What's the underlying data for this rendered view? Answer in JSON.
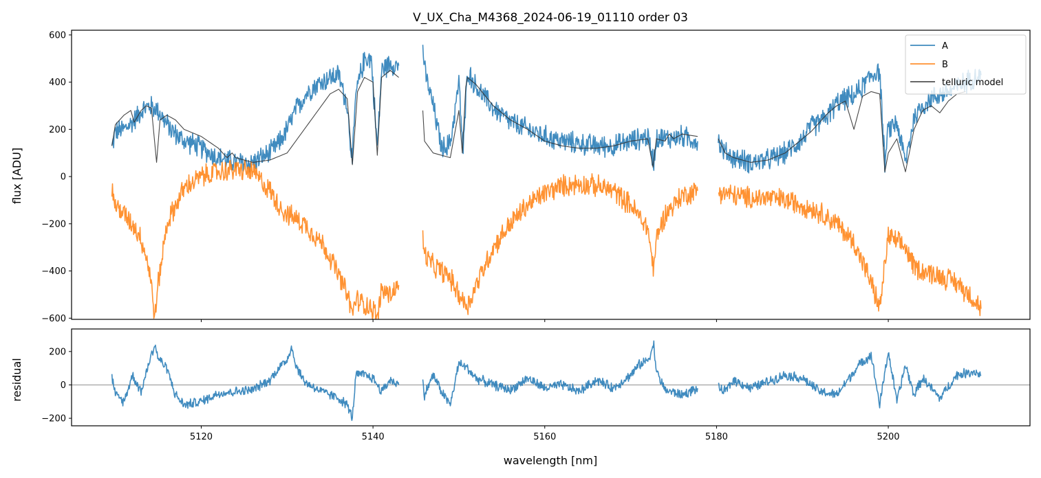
{
  "title": "V_UX_Cha_M4368_2024-06-19_01110  order 03",
  "colors": {
    "A": "#1f77b4",
    "B": "#ff7f0e",
    "model": "#333333",
    "zero_line": "#808080"
  },
  "chart_data": [
    {
      "type": "line",
      "panel": "top",
      "title": "V_UX_Cha_M4368_2024-06-19_01110  order 03",
      "xlabel": "",
      "ylabel": "flux [ADU]",
      "xlim": [
        5104.9,
        5216.5
      ],
      "ylim": [
        -605,
        620
      ],
      "yticks": [
        -600,
        -400,
        -200,
        0,
        200,
        400,
        600
      ],
      "ytick_labels": [
        "−600",
        "−400",
        "−200",
        "0",
        "200",
        "400",
        "600"
      ],
      "xticks": [
        5120,
        5140,
        5160,
        5180,
        5200
      ],
      "legend": {
        "placement": "top-right",
        "entries": [
          "A",
          "B",
          "telluric model"
        ]
      },
      "series": [
        {
          "name": "A",
          "segments": [
            {
              "x": [
                5109.6,
                5110,
                5111,
                5112,
                5113,
                5114,
                5115,
                5116,
                5117,
                5118,
                5119,
                5120,
                5122,
                5124,
                5126,
                5128,
                5129,
                5130,
                5131,
                5132,
                5133,
                5134,
                5135,
                5136,
                5137,
                5137.6,
                5138,
                5139,
                5139.8,
                5140.5,
                5141,
                5142,
                5143
              ],
              "y": [
                120,
                190,
                200,
                230,
                280,
                300,
                280,
                220,
                180,
                150,
                140,
                120,
                80,
                60,
                60,
                100,
                140,
                200,
                280,
                340,
                380,
                400,
                420,
                430,
                300,
                60,
                350,
                500,
                500,
                120,
                450,
                480,
                470
              ]
            },
            {
              "x": [
                5145.8,
                5146,
                5147,
                5148,
                5149,
                5150,
                5150.5,
                5151,
                5152,
                5154,
                5156,
                5158,
                5160,
                5162,
                5164,
                5166,
                5168,
                5170,
                5172,
                5172.7,
                5173,
                5174,
                5176,
                5177.8
              ],
              "y": [
                560,
                450,
                300,
                120,
                140,
                400,
                100,
                450,
                380,
                290,
                230,
                200,
                170,
                150,
                140,
                130,
                130,
                150,
                170,
                60,
                170,
                160,
                170,
                150
              ]
            },
            {
              "x": [
                5180.2,
                5181,
                5182,
                5184,
                5186,
                5188,
                5190,
                5191,
                5192,
                5193,
                5194,
                5195,
                5196,
                5197,
                5198,
                5199,
                5199.6,
                5200,
                5201,
                5202,
                5203,
                5204,
                5205,
                5206,
                5207,
                5208,
                5209,
                5210,
                5210.8
              ],
              "y": [
                150,
                100,
                80,
                60,
                70,
                100,
                160,
                210,
                230,
                260,
                310,
                330,
                340,
                380,
                430,
                450,
                50,
                200,
                230,
                60,
                250,
                300,
                330,
                350,
                360,
                380,
                400,
                420,
                430
              ]
            }
          ]
        },
        {
          "name": "B",
          "segments": [
            {
              "x": [
                5109.6,
                5110,
                5111,
                5112,
                5113,
                5114,
                5114.6,
                5115,
                5116,
                5118,
                5120,
                5122,
                5124,
                5126,
                5128,
                5129,
                5130,
                5131,
                5132,
                5133,
                5134,
                5135,
                5136,
                5137,
                5137.6,
                5138,
                5139,
                5140,
                5140.5,
                5141,
                5142,
                5143
              ],
              "y": [
                -60,
                -120,
                -160,
                -200,
                -260,
                -400,
                -600,
                -450,
                -200,
                -50,
                0,
                20,
                30,
                20,
                -60,
                -120,
                -160,
                -180,
                -200,
                -240,
                -280,
                -340,
                -420,
                -500,
                -580,
                -520,
                -540,
                -560,
                -600,
                -480,
                -500,
                -460
              ]
            },
            {
              "x": [
                5145.8,
                5146,
                5147,
                5148,
                5149,
                5150,
                5151,
                5152,
                5154,
                5156,
                5158,
                5160,
                5162,
                5164,
                5166,
                5168,
                5170,
                5172,
                5172.7,
                5173,
                5174,
                5176,
                5177.8
              ],
              "y": [
                -260,
                -330,
                -380,
                -400,
                -430,
                -500,
                -550,
                -460,
                -300,
                -200,
                -120,
                -70,
                -40,
                -30,
                -40,
                -60,
                -120,
                -220,
                -400,
                -260,
                -160,
                -80,
                -60
              ]
            },
            {
              "x": [
                5180.2,
                5181,
                5182,
                5184,
                5186,
                5188,
                5190,
                5192,
                5194,
                5196,
                5197,
                5198,
                5199,
                5200,
                5201,
                5202,
                5203,
                5204,
                5206,
                5208,
                5210,
                5210.8
              ],
              "y": [
                -60,
                -70,
                -80,
                -90,
                -90,
                -100,
                -120,
                -150,
                -200,
                -280,
                -360,
                -450,
                -560,
                -250,
                -280,
                -300,
                -380,
                -400,
                -420,
                -450,
                -520,
                -560
              ]
            }
          ]
        },
        {
          "name": "telluric model",
          "segments": [
            {
              "x": [
                5109.6,
                5110,
                5111,
                5111.8,
                5112.2,
                5113,
                5113.6,
                5114.2,
                5114.8,
                5115.2,
                5116,
                5117,
                5118,
                5120,
                5122,
                5123,
                5123.6,
                5124,
                5125,
                5126,
                5128,
                5130,
                5132,
                5134,
                5135,
                5136,
                5137,
                5137.6,
                5138.2,
                5139,
                5140,
                5140.5,
                5141,
                5142,
                5143
              ],
              "y": [
                130,
                220,
                260,
                280,
                230,
                280,
                300,
                290,
                60,
                240,
                260,
                240,
                200,
                170,
                120,
                80,
                100,
                80,
                70,
                60,
                70,
                100,
                200,
                300,
                350,
                370,
                330,
                50,
                360,
                420,
                400,
                90,
                420,
                450,
                420
              ]
            },
            {
              "x": [
                5145.8,
                5146,
                5147,
                5148,
                5149,
                5150,
                5150.4,
                5150.8,
                5151,
                5152,
                5154,
                5156,
                5158,
                5160,
                5162,
                5164,
                5166,
                5168,
                5170,
                5172,
                5172.6,
                5173,
                5174,
                5174.5,
                5175,
                5176,
                5177.8
              ],
              "y": [
                280,
                150,
                100,
                90,
                80,
                280,
                100,
                380,
                420,
                390,
                300,
                240,
                200,
                150,
                130,
                120,
                120,
                130,
                150,
                160,
                40,
                160,
                150,
                180,
                160,
                180,
                170
              ]
            },
            {
              "x": [
                5180.2,
                5181,
                5182,
                5184,
                5186,
                5188,
                5190,
                5191,
                5192,
                5193,
                5194,
                5195,
                5196,
                5197,
                5198,
                5199,
                5199.6,
                5200,
                5201,
                5202,
                5203,
                5204,
                5205,
                5206,
                5207,
                5208,
                5209
              ],
              "y": [
                160,
                100,
                80,
                60,
                70,
                100,
                160,
                190,
                230,
                270,
                300,
                320,
                200,
                340,
                360,
                350,
                20,
                100,
                160,
                20,
                200,
                280,
                300,
                270,
                320,
                350,
                360
              ]
            }
          ]
        }
      ]
    },
    {
      "type": "line",
      "panel": "bottom",
      "xlabel": "wavelength [nm]",
      "ylabel": "residual",
      "xlim": [
        5104.9,
        5216.5
      ],
      "ylim": [
        -245,
        335
      ],
      "yticks": [
        -200,
        0,
        200
      ],
      "ytick_labels": [
        "−200",
        "0",
        "200"
      ],
      "xticks": [
        5120,
        5140,
        5160,
        5180,
        5200
      ],
      "xtick_labels": [
        "5120",
        "5140",
        "5160",
        "5180",
        "5200"
      ],
      "hline": 0,
      "series": [
        {
          "name": "A",
          "segments": [
            {
              "x": [
                5109.6,
                5110,
                5111,
                5112,
                5113,
                5114,
                5114.6,
                5115,
                5116,
                5117,
                5118,
                5120,
                5122,
                5124,
                5126,
                5128,
                5129,
                5130,
                5130.5,
                5131,
                5132,
                5134,
                5136,
                5137,
                5137.6,
                5138,
                5139,
                5140,
                5141,
                5142,
                5143
              ],
              "y": [
                50,
                -60,
                -100,
                60,
                -40,
                150,
                240,
                160,
                100,
                -60,
                -120,
                -100,
                -50,
                -40,
                -30,
                30,
                100,
                150,
                230,
                120,
                20,
                -40,
                -80,
                -120,
                -200,
                60,
                60,
                40,
                -40,
                30,
                0
              ]
            },
            {
              "x": [
                5145.8,
                5146,
                5147,
                5148,
                5149,
                5150,
                5151,
                5152,
                5154,
                5156,
                5158,
                5160,
                5162,
                5164,
                5166,
                5168,
                5170,
                5171,
                5172,
                5172.7,
                5173,
                5174,
                5176,
                5177.8
              ],
              "y": [
                20,
                -60,
                60,
                -40,
                -120,
                130,
                100,
                40,
                0,
                -30,
                40,
                -20,
                0,
                -40,
                30,
                -20,
                60,
                120,
                150,
                240,
                80,
                -30,
                -60,
                -20
              ]
            },
            {
              "x": [
                5180.2,
                5181,
                5182,
                5184,
                5186,
                5188,
                5190,
                5192,
                5194,
                5196,
                5197,
                5198,
                5199,
                5200,
                5201,
                5202,
                5203,
                5204,
                5206,
                5208,
                5210,
                5210.8
              ],
              "y": [
                -20,
                -40,
                30,
                -20,
                20,
                60,
                40,
                -40,
                -60,
                80,
                140,
                180,
                -120,
                200,
                -100,
                120,
                -60,
                40,
                -80,
                60,
                80,
                60
              ]
            }
          ]
        }
      ]
    }
  ]
}
